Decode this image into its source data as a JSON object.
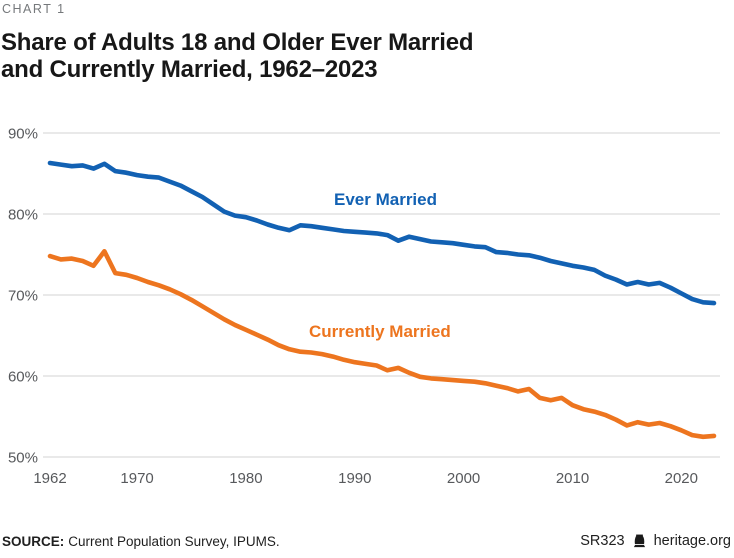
{
  "header": {
    "kicker": "CHART 1",
    "title_line1": "Share of Adults 18 and Older Ever Married",
    "title_line2": "and Currently Married, 1962–2023"
  },
  "colors": {
    "blue": "#1261b3",
    "orange": "#ed751f",
    "grid": "#dcdcdc",
    "axis_text": "#57595c",
    "kicker_text": "#75787b",
    "title_text": "#171717"
  },
  "chart_data": {
    "type": "line",
    "title": "Share of Adults 18 and Older Ever Married and Currently Married, 1962–2023",
    "xlabel": "",
    "ylabel": "",
    "x_range": [
      1962,
      2023
    ],
    "y_range": [
      50,
      90
    ],
    "y_ticks": [
      90,
      80,
      70,
      60,
      50
    ],
    "y_tick_suffix": "%",
    "x_label_ticks": [
      1962,
      1970,
      1980,
      1990,
      2000,
      2010,
      2020
    ],
    "grid": "horizontal-only",
    "legend_position": "inline-labels",
    "series": [
      {
        "name": "Ever Married",
        "color": "#1261b3",
        "x_start": 1962,
        "values": [
          86.3,
          86.1,
          85.9,
          86.0,
          85.6,
          86.2,
          85.3,
          85.1,
          84.8,
          84.6,
          84.5,
          84.0,
          83.5,
          82.8,
          82.1,
          81.2,
          80.3,
          79.8,
          79.6,
          79.2,
          78.7,
          78.3,
          78.0,
          78.6,
          78.5,
          78.3,
          78.1,
          77.9,
          77.8,
          77.7,
          77.6,
          77.4,
          76.7,
          77.2,
          76.9,
          76.6,
          76.5,
          76.4,
          76.2,
          76.0,
          75.9,
          75.3,
          75.2,
          75.0,
          74.9,
          74.6,
          74.2,
          73.9,
          73.6,
          73.4,
          73.1,
          72.4,
          71.9,
          71.3,
          71.6,
          71.3,
          71.5,
          70.9,
          70.2,
          69.5,
          69.1,
          69.0
        ]
      },
      {
        "name": "Currently Married",
        "color": "#ed751f",
        "x_start": 1962,
        "values": [
          74.8,
          74.4,
          74.5,
          74.2,
          73.6,
          75.4,
          72.7,
          72.5,
          72.1,
          71.6,
          71.2,
          70.7,
          70.1,
          69.4,
          68.6,
          67.8,
          67.0,
          66.3,
          65.7,
          65.1,
          64.5,
          63.8,
          63.3,
          63.0,
          62.9,
          62.7,
          62.4,
          62.0,
          61.7,
          61.5,
          61.3,
          60.7,
          61.0,
          60.4,
          59.9,
          59.7,
          59.6,
          59.5,
          59.4,
          59.3,
          59.1,
          58.8,
          58.5,
          58.1,
          58.4,
          57.3,
          57.0,
          57.3,
          56.4,
          55.9,
          55.6,
          55.2,
          54.6,
          53.9,
          54.3,
          54.0,
          54.2,
          53.8,
          53.3,
          52.7,
          52.5,
          52.6
        ]
      }
    ]
  },
  "footer": {
    "source_label": "SOURCE:",
    "source_text": "Current Population Survey, IPUMS.",
    "report_id": "SR323",
    "logo_icon": "liberty-bell-icon",
    "site": "heritage.org"
  }
}
